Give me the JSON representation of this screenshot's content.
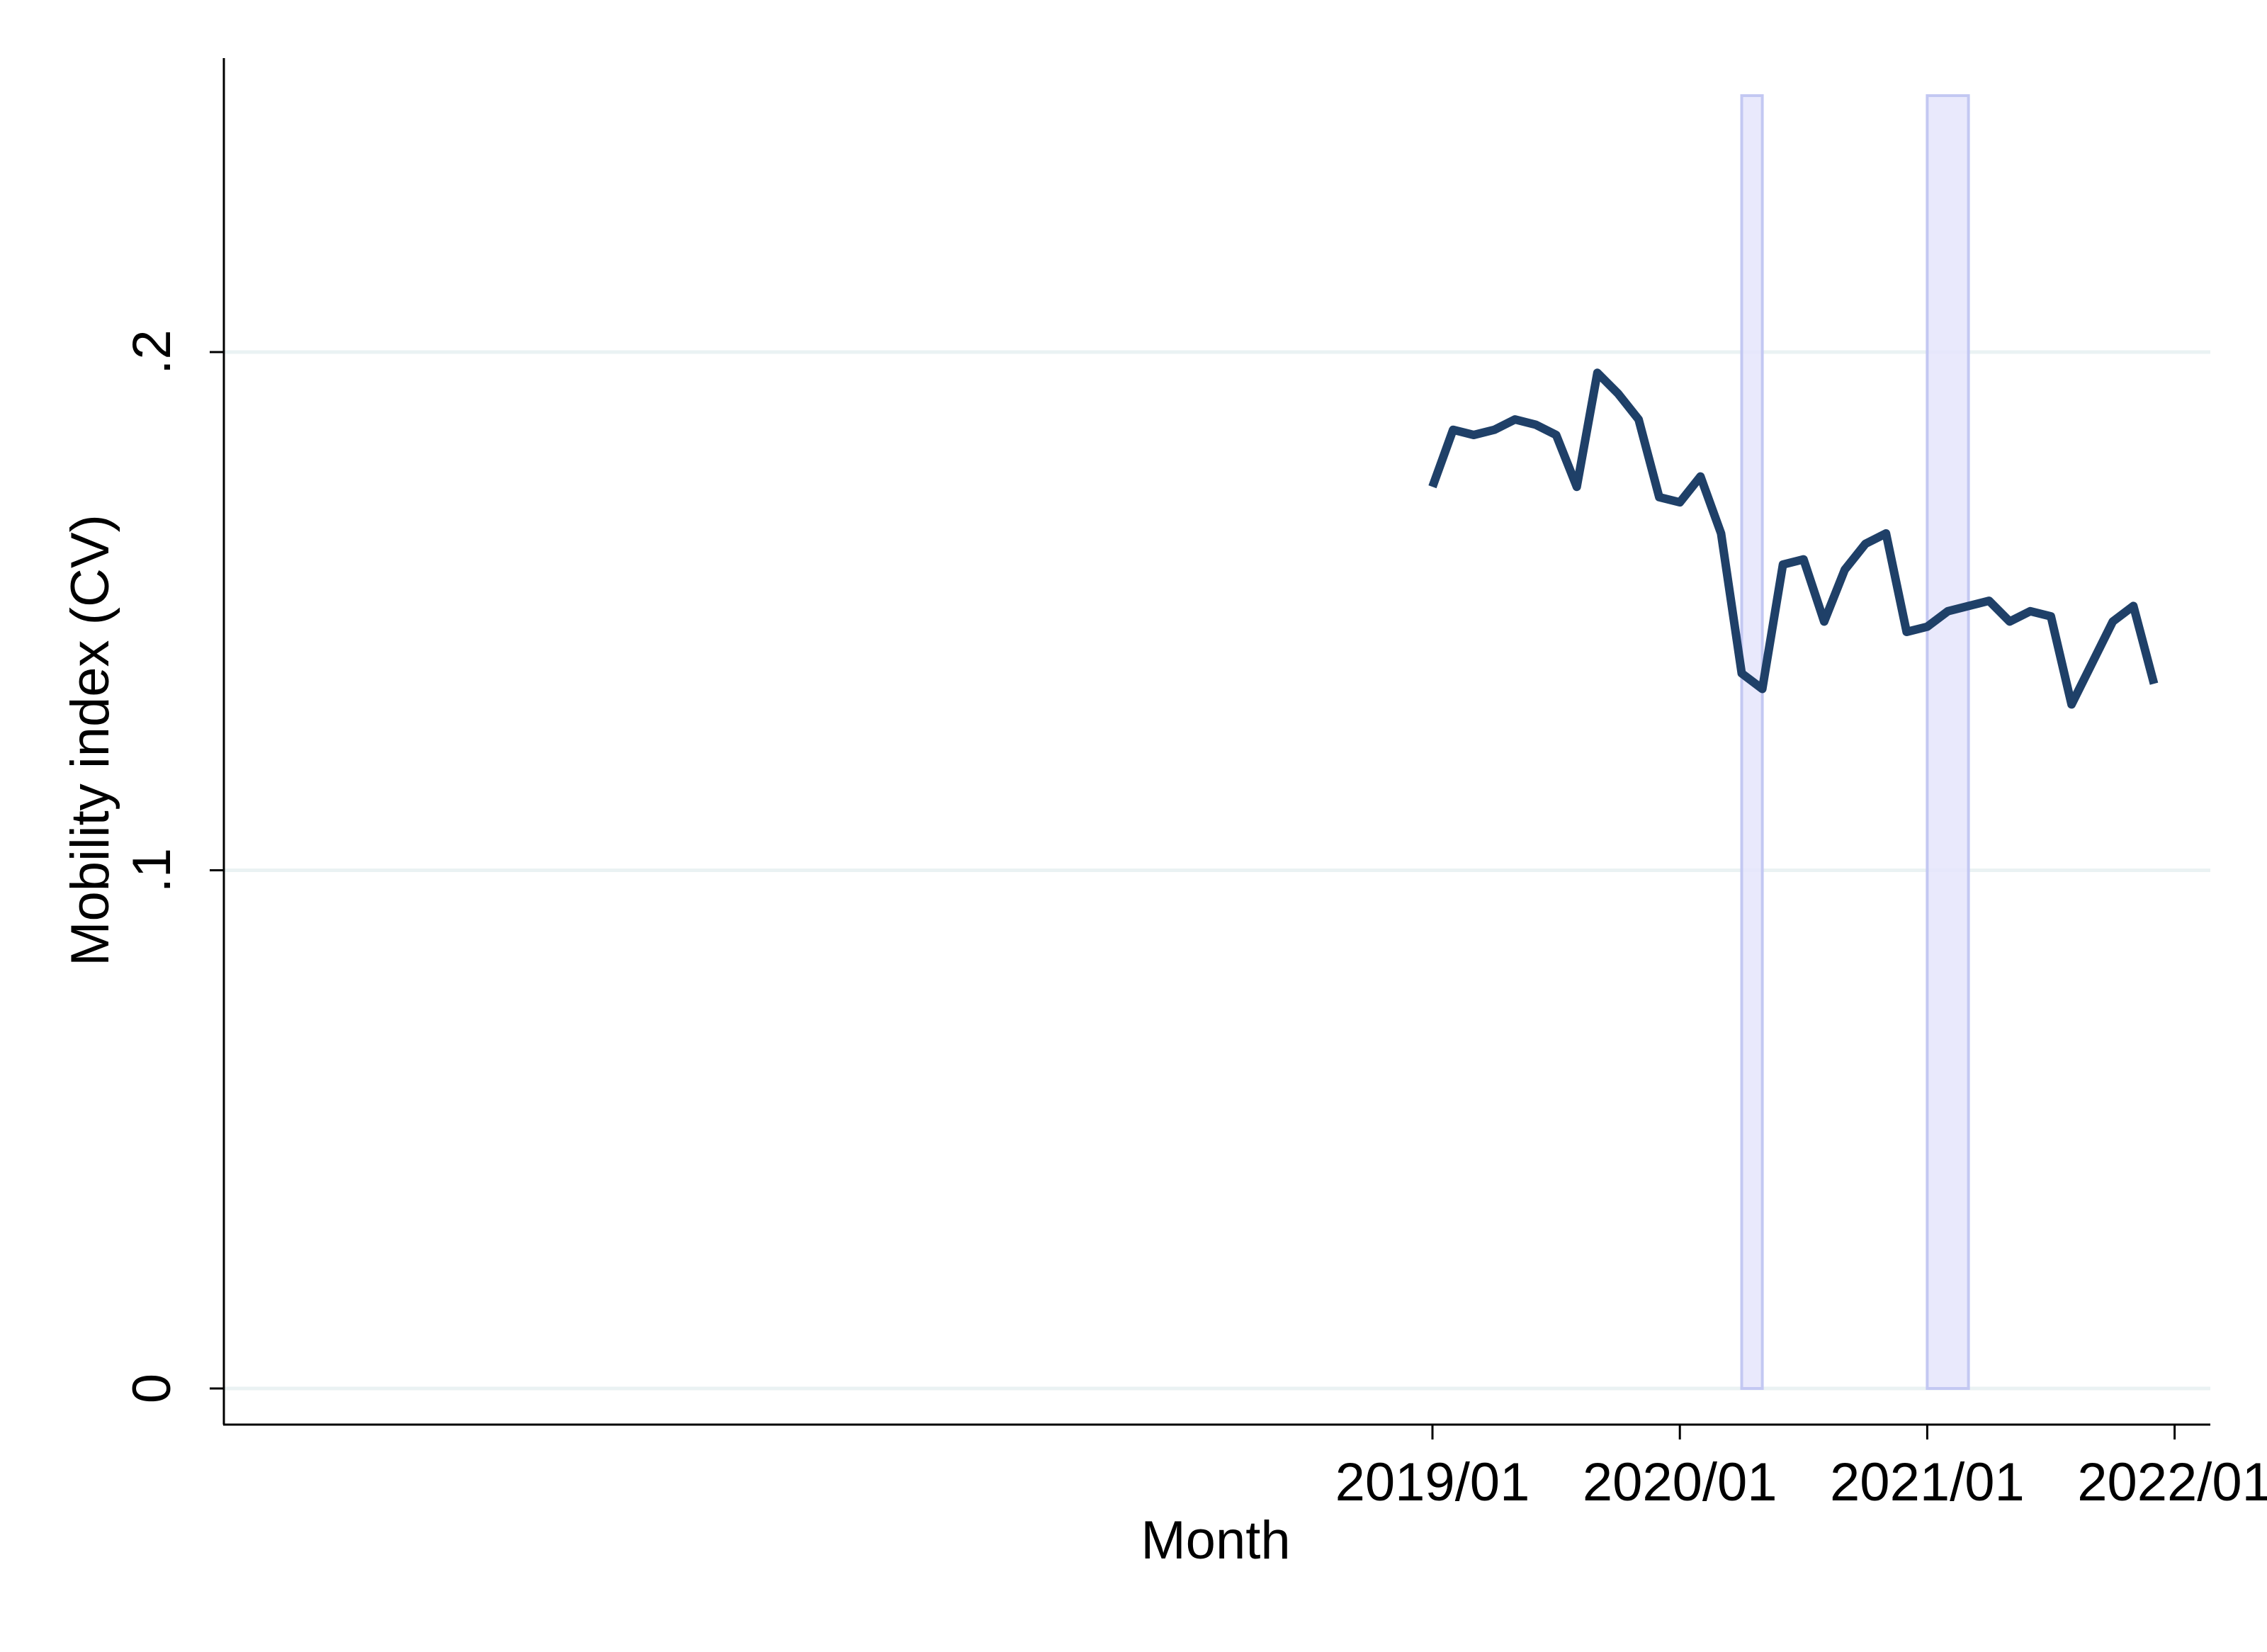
{
  "colors": {
    "line": "#1f4068",
    "gridline": "#eaf2f3",
    "shade_fill": "#e5e5fb",
    "shade_stroke": "#c3c8f2",
    "axis": "#000000",
    "background": "#ffffff"
  },
  "chart_data": {
    "type": "line",
    "title": "",
    "xlabel": "Month",
    "ylabel": "Mobility index (CV)",
    "xticks": [
      "2019/01",
      "2020/01",
      "2021/01",
      "2022/01"
    ],
    "yticks": [
      "0",
      ".1",
      ".2"
    ],
    "ytick_values": [
      0,
      0.1,
      0.2
    ],
    "ylim": [
      0,
      0.2
    ],
    "xlim": [
      "2014/02",
      "2022/02"
    ],
    "grid": "horizontal",
    "legend": "none",
    "shaded_periods": [
      {
        "start": "2020/04",
        "end": "2020/05"
      },
      {
        "start": "2021/01",
        "end": "2021/03"
      }
    ],
    "series": [
      {
        "x": [
          "2019/01",
          "2019/02",
          "2019/03",
          "2019/04",
          "2019/05",
          "2019/06",
          "2019/07",
          "2019/08",
          "2019/09",
          "2019/10",
          "2019/11",
          "2019/12",
          "2020/01",
          "2020/02",
          "2020/03",
          "2020/04",
          "2020/05",
          "2020/06",
          "2020/07",
          "2020/08",
          "2020/09",
          "2020/10",
          "2020/11",
          "2020/12",
          "2021/01",
          "2021/02",
          "2021/03",
          "2021/04",
          "2021/05",
          "2021/06",
          "2021/07",
          "2021/08",
          "2021/09",
          "2021/10",
          "2021/11",
          "2021/12"
        ],
        "values": [
          0.174,
          0.185,
          0.184,
          0.185,
          0.187,
          0.186,
          0.184,
          0.174,
          0.196,
          0.192,
          0.187,
          0.172,
          0.171,
          0.176,
          0.165,
          0.138,
          0.135,
          0.159,
          0.16,
          0.148,
          0.158,
          0.163,
          0.165,
          0.146,
          0.147,
          0.15,
          0.151,
          0.152,
          0.148,
          0.15,
          0.149,
          0.132,
          0.14,
          0.148,
          0.151,
          0.136
        ]
      }
    ]
  }
}
